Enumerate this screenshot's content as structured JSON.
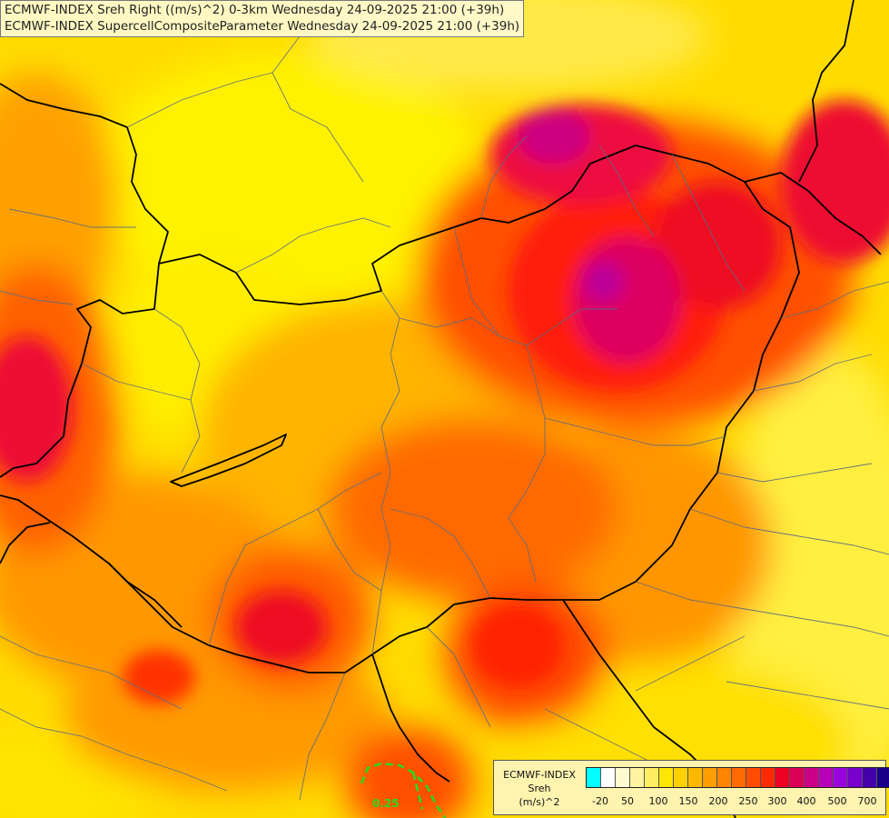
{
  "header": {
    "line1": "ECMWF-INDEX Sreh Right ((m/s)^2) 0-3km Wednesday 24-09-2025 21:00 (+39h)",
    "line2": "ECMWF-INDEX SupercellCompositeParameter Wednesday 24-09-2025 21:00 (+39h)"
  },
  "contour": {
    "label": "0.25",
    "color": "#22dd22"
  },
  "legend": {
    "line1": "ECMWF-INDEX",
    "line2": "Sreh",
    "line3": "(m/s)^2",
    "colors": [
      "#00ffff",
      "#ffffff",
      "#fffbd0",
      "#fff3a0",
      "#ffef60",
      "#ffe600",
      "#ffd000",
      "#ffb800",
      "#ff9e00",
      "#ff8400",
      "#ff6a00",
      "#ff4c00",
      "#ff2a00",
      "#ee0022",
      "#dd0055",
      "#cc0088",
      "#b800b8",
      "#9900dd",
      "#7700cc",
      "#4400aa",
      "#1a0088"
    ],
    "ticks": [
      "-20",
      "50",
      "100",
      "150",
      "200",
      "250",
      "300",
      "400",
      "500",
      "700"
    ]
  }
}
